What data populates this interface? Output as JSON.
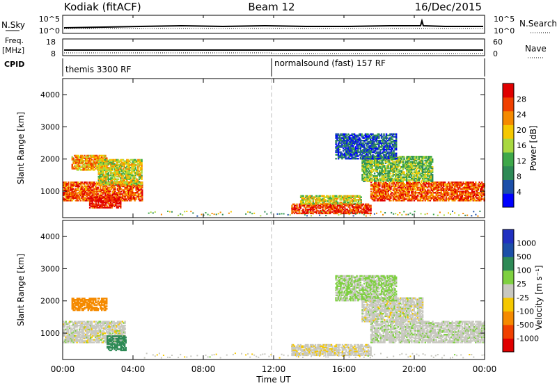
{
  "header": {
    "station": "Kodiak (fitACF)",
    "beam": "Beam 12",
    "date": "16/Dec/2015"
  },
  "noise_panel": {
    "left_label": "N.Sky",
    "left_ticks": [
      "10^5",
      "10^0"
    ],
    "right_label": "N.Search",
    "right_ticks": [
      "10^5",
      "10^0"
    ]
  },
  "freq_panel": {
    "left_label_1": "Freq.",
    "left_label_2": "[MHz]",
    "left_ticks": [
      "18",
      "8"
    ],
    "right_label": "Nave",
    "right_ticks": [
      "60",
      "0"
    ]
  },
  "cpid_panel": {
    "label": "CPID",
    "segments": [
      "themis 3300 RF",
      "normalsound (fast) 157 RF"
    ]
  },
  "power_panel": {
    "ylabel": "Slant Range [km]",
    "yticks": [
      "4000",
      "3000",
      "2000",
      "1000"
    ],
    "colorbar_label": "Power [dB]",
    "colorbar_ticks": [
      "28",
      "24",
      "20",
      "16",
      "12",
      "8",
      "4"
    ]
  },
  "velocity_panel": {
    "ylabel": "Slant Range [km]",
    "yticks": [
      "4000",
      "3000",
      "2000",
      "1000"
    ],
    "colorbar_label": "Velocity [m s⁻¹]",
    "colorbar_ticks": [
      "1000",
      "500",
      "100",
      "25",
      "-25",
      "-100",
      "-500",
      "-1000"
    ]
  },
  "xaxis": {
    "ticks": [
      "00:00",
      "04:00",
      "08:00",
      "12:00",
      "16:00",
      "20:00",
      "00:00"
    ],
    "label": "Time UT"
  },
  "chart_data": {
    "type": "heatmap",
    "x_unit": "hours UT",
    "xlim": [
      0,
      24
    ],
    "ylim_km": [
      180,
      4500
    ],
    "power_scale": {
      "unit": "dB",
      "min": 0,
      "max": 32,
      "colors": [
        "#0000ff",
        "#1c4fa8",
        "#2e8a56",
        "#3ea84a",
        "#a8d840",
        "#f5c800",
        "#f58a00",
        "#f04000",
        "#e00000"
      ]
    },
    "velocity_scale": {
      "unit": "m s^-1",
      "levels": [
        -1000,
        -500,
        -100,
        -25,
        25,
        100,
        500,
        1000
      ],
      "colors": [
        "#e00000",
        "#f04000",
        "#f58a00",
        "#f5c800",
        "#c8c8c0",
        "#7ed040",
        "#2e8a56",
        "#1c4fa8",
        "#2030c0"
      ]
    },
    "power_regions": [
      {
        "t0": 0.0,
        "t1": 4.5,
        "r0": 700,
        "r1": 1300,
        "p": 26
      },
      {
        "t0": 1.5,
        "t1": 3.3,
        "r0": 480,
        "r1": 820,
        "p": 30
      },
      {
        "t0": 0.5,
        "t1": 2.5,
        "r0": 1650,
        "r1": 2100,
        "p": 22
      },
      {
        "t0": 2.0,
        "t1": 4.5,
        "r0": 1200,
        "r1": 2000,
        "p": 18
      },
      {
        "t0": 13.0,
        "t1": 17.5,
        "r0": 300,
        "r1": 600,
        "p": 28
      },
      {
        "t0": 13.5,
        "t1": 17.0,
        "r0": 600,
        "r1": 850,
        "p": 18
      },
      {
        "t0": 17.5,
        "t1": 24.0,
        "r0": 700,
        "r1": 1300,
        "p": 26
      },
      {
        "t0": 17.0,
        "t1": 21.0,
        "r0": 1300,
        "r1": 2100,
        "p": 14
      },
      {
        "t0": 15.5,
        "t1": 19.0,
        "r0": 2000,
        "r1": 2800,
        "p": 6
      }
    ],
    "velocity_regions": [
      {
        "t0": 0.0,
        "t1": 3.5,
        "r0": 700,
        "r1": 1350,
        "v": 0
      },
      {
        "t0": 2.5,
        "t1": 3.6,
        "r0": 450,
        "r1": 900,
        "v": 150
      },
      {
        "t0": 0.5,
        "t1": 2.5,
        "r0": 1700,
        "r1": 2100,
        "v": -400
      },
      {
        "t0": 13.0,
        "t1": 17.5,
        "r0": 300,
        "r1": 650,
        "v": -10
      },
      {
        "t0": 17.5,
        "t1": 24.0,
        "r0": 700,
        "r1": 1350,
        "v": 5
      },
      {
        "t0": 17.0,
        "t1": 20.5,
        "r0": 1350,
        "r1": 2100,
        "v": 0
      },
      {
        "t0": 15.5,
        "t1": 19.0,
        "r0": 2000,
        "r1": 2800,
        "v": 30
      }
    ]
  }
}
